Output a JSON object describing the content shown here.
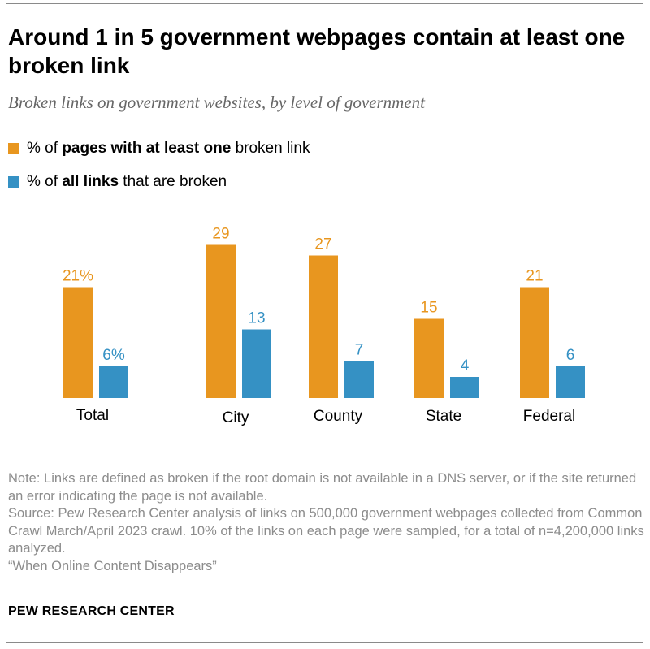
{
  "title": "Around 1 in 5 government webpages contain at least one broken link",
  "subtitle": "Broken links on government websites, by level of government",
  "legend": [
    {
      "pre": "% of ",
      "bold": "pages with at least one",
      "post": " broken link",
      "color": "#E8961F"
    },
    {
      "pre": "% of ",
      "bold": "all links",
      "post": " that are broken",
      "color": "#3591C4"
    }
  ],
  "chart_data": {
    "type": "bar",
    "categories": [
      "Total",
      "City",
      "County",
      "State",
      "Federal"
    ],
    "series": [
      {
        "name": "% of pages with at least one broken link",
        "values": [
          21,
          29,
          27,
          15,
          21
        ],
        "labels": [
          "21%",
          "29",
          "27",
          "15",
          "21"
        ],
        "color": "#E8961F"
      },
      {
        "name": "% of all links that are broken",
        "values": [
          6,
          13,
          7,
          4,
          6
        ],
        "labels": [
          "6%",
          "13",
          "7",
          "4",
          "6"
        ],
        "color": "#3591C4"
      }
    ],
    "ylim": [
      0,
      35
    ]
  },
  "notes": {
    "note": "Note: Links are defined as broken if the root domain is not available in a DNS server, or if the site returned an error indicating the page is not available.",
    "source": "Source: Pew Research Center analysis of links on 500,000 government webpages collected from Common Crawl March/April 2023 crawl. 10% of the links on each page were sampled, for a total of n=4,200,000 links analyzed.",
    "report": "“When Online Content Disappears”"
  },
  "brand": "PEW RESEARCH CENTER"
}
